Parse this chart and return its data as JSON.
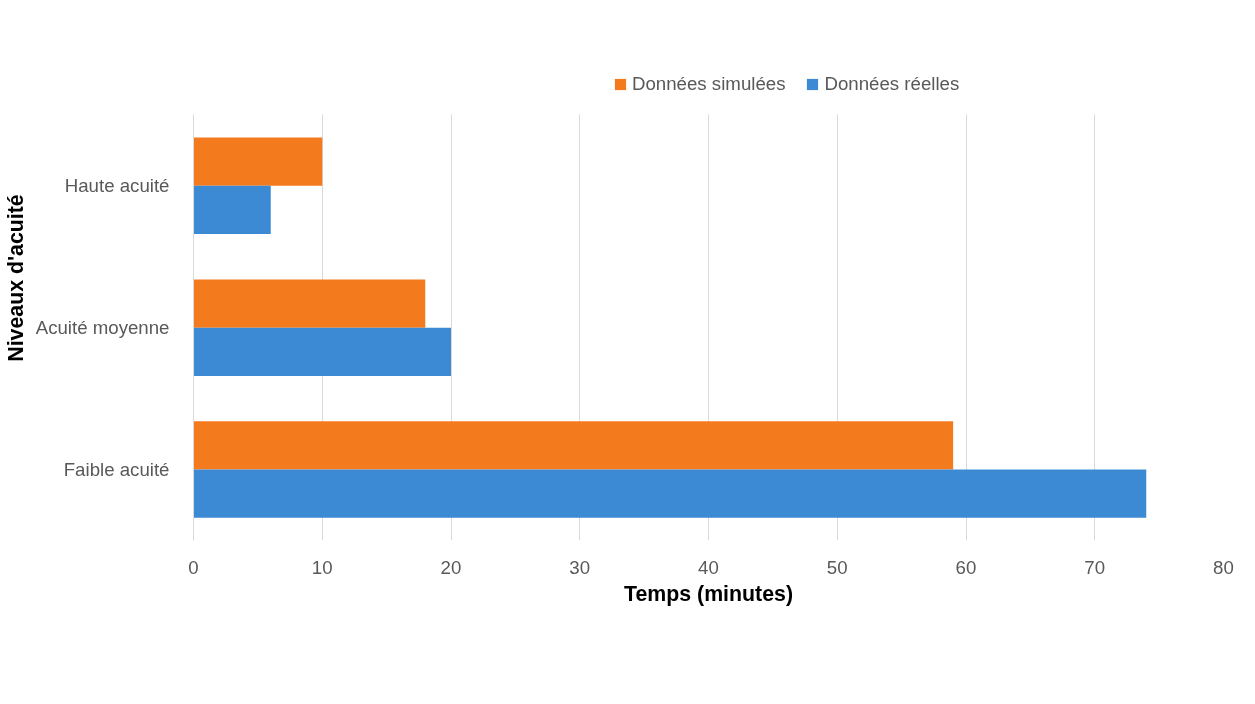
{
  "chart_data": {
    "type": "bar",
    "orientation": "horizontal",
    "xlabel": "Temps (minutes)",
    "ylabel": "Niveaux d'acuité",
    "categories": [
      "Haute acuité",
      "Acuité moyenne",
      "Faible acuité"
    ],
    "series": [
      {
        "name": "Données simulées",
        "color": "#f47a1e",
        "values": [
          10,
          18,
          59
        ]
      },
      {
        "name": "Données réelles",
        "color": "#3d8ad4",
        "values": [
          6,
          20,
          74
        ]
      }
    ],
    "xlim": [
      0,
      80
    ],
    "xticks": [
      0,
      10,
      20,
      30,
      40,
      50,
      60,
      70,
      80
    ],
    "grid": "x",
    "legend": "top"
  }
}
